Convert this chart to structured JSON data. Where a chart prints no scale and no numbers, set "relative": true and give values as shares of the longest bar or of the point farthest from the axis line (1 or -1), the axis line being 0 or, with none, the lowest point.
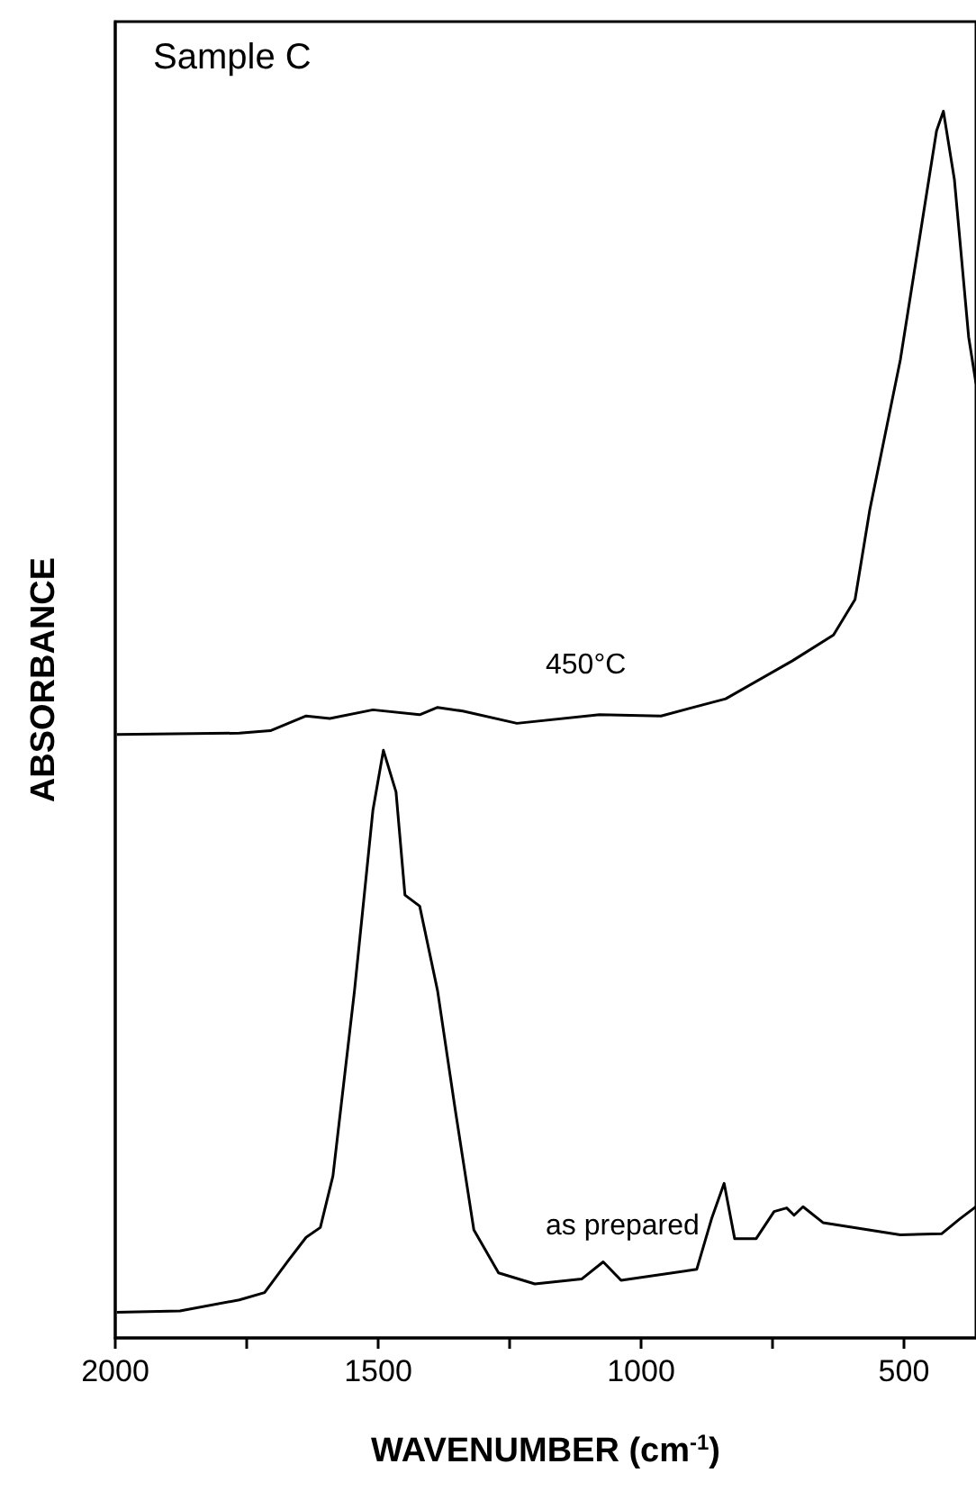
{
  "chart_data": {
    "type": "line",
    "relative": true,
    "xlabel": "WAVENUMBER (cm$^{-1}$)",
    "ylabel": "ABSORBANCE",
    "xlim": [
      2000,
      363
    ],
    "xticks": [
      2000,
      {
        "value": 1750,
        "label": null
      },
      1500,
      {
        "value": 1250,
        "label": null
      },
      1000,
      {
        "value": 750,
        "label": null
      },
      500
    ],
    "tick_labels": "x",
    "grid": false,
    "marker": "none",
    "line_style": "solid",
    "annotations": [
      "Sample C"
    ],
    "series": [
      {
        "name": "450°C",
        "color": "#000000",
        "x": [
          1997,
          1764,
          1705,
          1637,
          1592,
          1510,
          1421,
          1387,
          1339,
          1236,
          1079,
          962,
          839,
          712,
          634,
          593,
          565,
          507,
          462,
          438,
          425,
          404,
          377,
          363
        ],
        "values": [
          0.492,
          0.493,
          0.495,
          0.507,
          0.505,
          0.512,
          0.508,
          0.514,
          0.511,
          0.501,
          0.508,
          0.507,
          0.521,
          0.552,
          0.573,
          0.602,
          0.675,
          0.797,
          0.919,
          0.984,
          1,
          0.944,
          0.816,
          0.778
        ]
      },
      {
        "name": "as prepared",
        "color": "#000000",
        "x": [
          1997,
          1877,
          1764,
          1716,
          1671,
          1637,
          1610,
          1586,
          1545,
          1510,
          1490,
          1466,
          1449,
          1421,
          1387,
          1353,
          1318,
          1271,
          1202,
          1113,
          1072,
          1038,
          894,
          866,
          842,
          822,
          781,
          747,
          723,
          709,
          692,
          654,
          507,
          428,
          394,
          363
        ],
        "values": [
          0.021,
          0.022,
          0.031,
          0.037,
          0.063,
          0.082,
          0.09,
          0.132,
          0.283,
          0.43,
          0.479,
          0.445,
          0.361,
          0.352,
          0.283,
          0.185,
          0.088,
          0.053,
          0.044,
          0.048,
          0.062,
          0.047,
          0.056,
          0.097,
          0.126,
          0.081,
          0.081,
          0.103,
          0.106,
          0.1,
          0.107,
          0.094,
          0.084,
          0.085,
          0.097,
          0.107
        ]
      }
    ]
  }
}
